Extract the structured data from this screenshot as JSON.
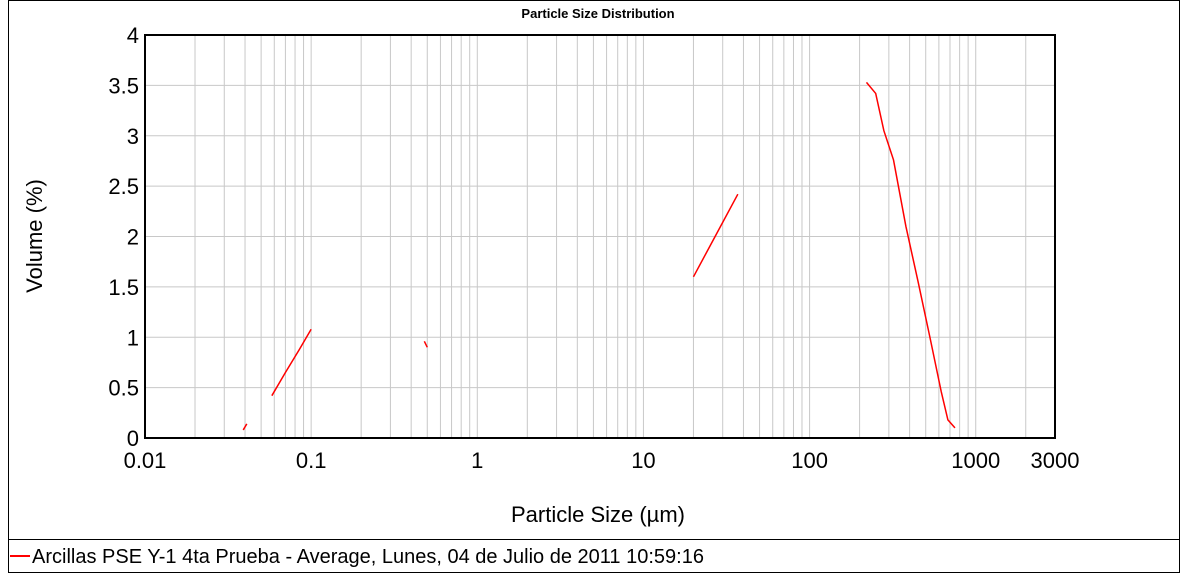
{
  "chart_data": {
    "type": "line",
    "title": "Particle Size Distribution",
    "xlabel": "Particle Size (µm)",
    "ylabel": "Volume (%)",
    "xscale": "log",
    "xlim": [
      0.01,
      3000
    ],
    "xticks": [
      0.01,
      0.1,
      1,
      10,
      100,
      1000,
      3000
    ],
    "ylim": [
      0,
      4
    ],
    "yticks": [
      0,
      0.5,
      1,
      1.5,
      2,
      2.5,
      3,
      3.5,
      4
    ],
    "grid": true,
    "legend": "bottom",
    "x": [
      0.039,
      0.041,
      null,
      0.058,
      0.07,
      0.085,
      0.1,
      null,
      0.48,
      0.5,
      null,
      20,
      27,
      37,
      null,
      220,
      250,
      280,
      320,
      380,
      450,
      530,
      620,
      680,
      750
    ],
    "series": [
      {
        "name": "Arcillas PSE Y-1 4ta Prueba - Average, Lunes, 04 de Julio de 2011 10:59:16",
        "color": "#ff0000",
        "values": [
          0.08,
          0.14,
          null,
          0.42,
          0.65,
          0.88,
          1.08,
          null,
          0.96,
          0.9,
          null,
          1.6,
          2.0,
          2.42,
          null,
          3.53,
          3.42,
          3.05,
          2.76,
          2.1,
          1.55,
          1.0,
          0.46,
          0.18,
          0.1
        ]
      }
    ]
  }
}
